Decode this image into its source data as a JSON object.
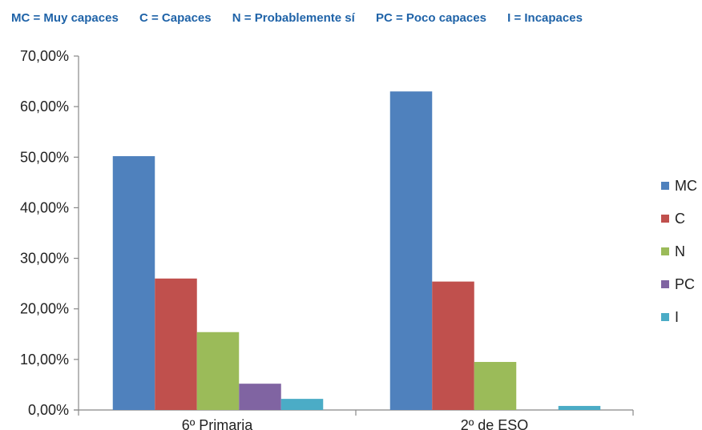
{
  "header": {
    "items": [
      "MC = Muy capaces",
      "C = Capaces",
      "N = Probablemente sí",
      "PC = Poco capaces",
      "I = Incapaces"
    ],
    "color": "#1f63a8"
  },
  "chart_data": {
    "type": "bar",
    "title": "",
    "xlabel": "",
    "ylabel": "",
    "categories": [
      "6º Primaria",
      "2º de ESO"
    ],
    "ylim": [
      0,
      70
    ],
    "yticks": [
      0,
      10,
      20,
      30,
      40,
      50,
      60,
      70
    ],
    "ytick_labels": [
      "0,00%",
      "10,00%",
      "20,00%",
      "30,00%",
      "40,00%",
      "50,00%",
      "60,00%",
      "70,00%"
    ],
    "grid": false,
    "legend_position": "right",
    "series": [
      {
        "name": "MC",
        "color": "#4f81bd",
        "values": [
          50.2,
          63.0
        ]
      },
      {
        "name": "C",
        "color": "#c0504d",
        "values": [
          26.0,
          25.4
        ]
      },
      {
        "name": "N",
        "color": "#9bbb59",
        "values": [
          15.4,
          9.5
        ]
      },
      {
        "name": "PC",
        "color": "#8064a2",
        "values": [
          5.2,
          0.0
        ]
      },
      {
        "name": "I",
        "color": "#4bacc6",
        "values": [
          2.2,
          0.8
        ]
      }
    ]
  }
}
